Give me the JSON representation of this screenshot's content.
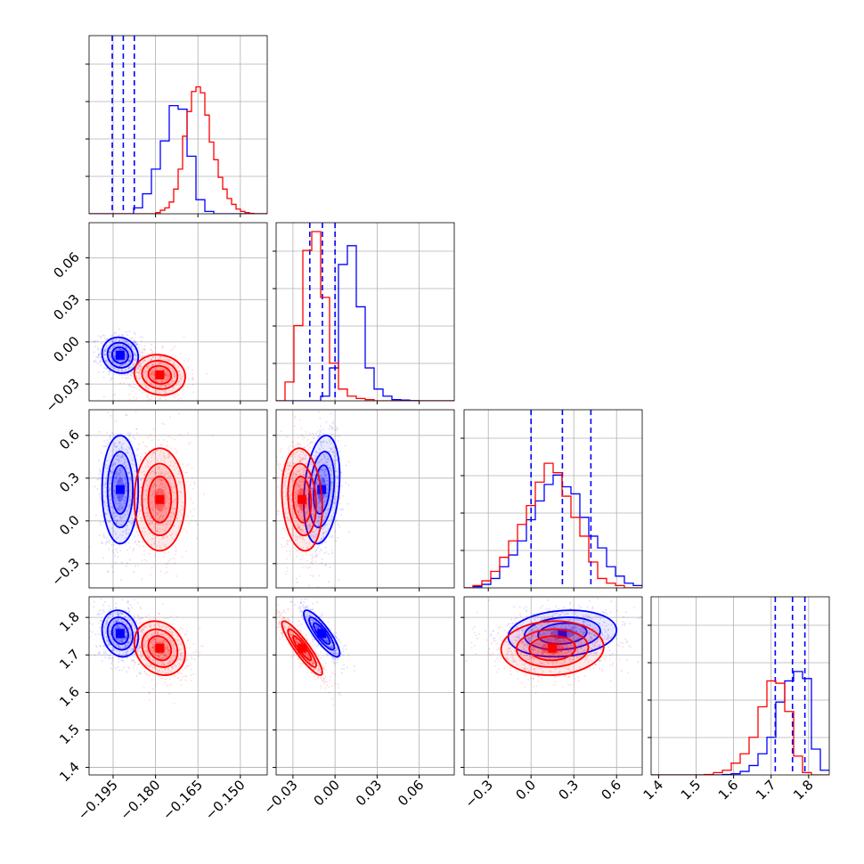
{
  "chart_data": {
    "type": "corner",
    "colors": {
      "blue": "#0000ff",
      "red": "#ff0000",
      "grid": "#b0b0b0"
    },
    "params": [
      {
        "ticks": [
          -0.195,
          -0.18,
          -0.165,
          -0.15
        ],
        "tick_labels": [
          "−0.195",
          "−0.180",
          "−0.165",
          "−0.150"
        ],
        "range": [
          -0.2035,
          -0.1405
        ]
      },
      {
        "ticks": [
          -0.03,
          0.0,
          0.03,
          0.06
        ],
        "tick_labels": [
          "−0.03",
          "0.00",
          "0.03",
          "0.06"
        ],
        "range": [
          -0.042,
          0.085
        ]
      },
      {
        "ticks": [
          -0.3,
          0.0,
          0.3,
          0.6
        ],
        "tick_labels": [
          "−0.3",
          "0.0",
          "0.3",
          "0.6"
        ],
        "range": [
          -0.47,
          0.78
        ]
      },
      {
        "ticks": [
          1.4,
          1.5,
          1.6,
          1.7,
          1.8
        ],
        "tick_labels": [
          "1.4",
          "1.5",
          "1.6",
          "1.7",
          "1.8"
        ],
        "range": [
          1.38,
          1.855
        ]
      }
    ],
    "series": [
      {
        "color": "blue",
        "mean": [
          -0.1925,
          -0.0095,
          0.22,
          1.757
        ],
        "std": [
          0.0032,
          0.0064,
          0.19,
          0.031
        ],
        "quantiles": [
          [
            -0.1953,
            -0.1914,
            -0.1875
          ],
          [
            -0.018,
            -0.009,
            0.0
          ],
          [
            0.0,
            0.22,
            0.42
          ],
          [
            1.711,
            1.757,
            1.79
          ]
        ],
        "correlations": {
          "0-1": -0.1,
          "0-2": 0.0,
          "0-3": -0.15,
          "1-2": 0.25,
          "1-3": -0.85,
          "2-3": 0.15
        },
        "hist": [
          [
            0,
            0,
            0,
            0,
            0,
            2.5,
            8.5,
            19.0,
            31.0,
            46.0,
            44.5,
            24.5,
            6.0,
            1.0,
            0,
            0,
            0,
            0,
            0,
            0
          ],
          [
            0,
            0,
            0,
            0,
            0,
            2,
            14,
            58,
            66,
            40,
            14,
            5,
            2,
            0.5,
            0.3,
            0.1,
            0,
            0,
            0,
            0
          ],
          [
            0,
            0.5,
            1.5,
            4,
            9,
            14,
            20,
            29,
            37,
            44,
            48,
            43,
            40,
            30,
            22,
            17,
            9,
            5,
            2,
            1
          ],
          [
            0,
            0,
            0,
            0,
            0,
            0,
            0,
            0,
            0.2,
            0.5,
            1.5,
            4,
            9,
            16,
            31,
            40,
            44,
            41,
            11,
            2
          ]
        ]
      },
      {
        "color": "red",
        "mean": [
          -0.1785,
          -0.0235,
          0.15,
          1.718
        ],
        "std": [
          0.0045,
          0.0072,
          0.18,
          0.036
        ],
        "quantiles": [],
        "correlations": {
          "0-1": -0.1,
          "0-2": 0.0,
          "0-3": -0.2,
          "1-2": -0.15,
          "1-3": -0.9,
          "2-3": 0.05
        },
        "hist": [
          [
            0,
            0,
            0,
            0,
            0,
            0,
            0,
            0,
            0,
            0,
            0,
            0,
            0,
            0,
            0,
            0.5,
            1.5,
            2.5,
            5.0,
            10.5,
            19.0,
            33.0,
            43.5,
            52.0,
            54.0,
            51.5,
            42.0,
            30.5,
            23.0,
            15.5,
            10.5,
            6.5,
            4.0,
            2.0,
            1.0,
            0.5,
            0.2,
            0,
            0,
            0
          ],
          [
            0,
            8,
            32,
            64,
            72,
            44,
            16,
            5,
            2,
            1,
            0.5,
            0,
            0,
            0,
            0,
            0,
            0,
            0,
            0,
            0
          ],
          [
            0,
            1,
            3,
            7,
            13,
            20,
            27,
            35,
            45,
            53,
            49,
            39,
            30,
            22,
            11,
            4,
            2,
            1,
            0,
            0
          ],
          [
            0,
            0,
            0,
            0,
            0,
            0,
            0.2,
            1,
            2,
            5,
            9,
            16,
            29,
            40,
            39,
            27,
            8,
            1,
            0,
            0
          ]
        ]
      }
    ]
  }
}
